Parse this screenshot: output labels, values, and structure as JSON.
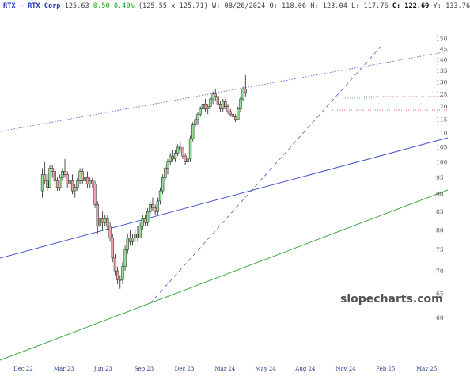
{
  "header": {
    "symbol": "RTX",
    "sep": "-",
    "company": "RTX Corp",
    "last": "125.63",
    "change": "0.50",
    "change_pct": "0.40%",
    "bid_ask": "(125.55 x 125.71)",
    "week_label": "W: 08/26/2024",
    "open": "O: 118.06",
    "high": "H: 123.04",
    "low": "L: 117.76",
    "close": "C: 122.69",
    "y_readout": "Y: 133.76"
  },
  "watermark": "slopecharts.com",
  "colors": {
    "up": "#90e090",
    "down": "#f2a0a8",
    "blue": "#4656cc",
    "green": "#39a539",
    "red": "#d83030"
  },
  "chart_data": {
    "type": "candlestick",
    "y_scale": "log",
    "ylim": [
      56,
      157
    ],
    "y_ticks": [
      60,
      65,
      70,
      75,
      80,
      85,
      90,
      95,
      100,
      105,
      110,
      115,
      120,
      125,
      130,
      135,
      140,
      145,
      150
    ],
    "x_ticks": [
      "Dec 22",
      "Mar 23",
      "Jun 23",
      "Sep 23",
      "Dec 23",
      "Mar 24",
      "May 24",
      "Aug 24",
      "Nov 24",
      "Feb 25",
      "May 25"
    ],
    "weeks": [
      [
        91,
        98,
        89,
        96
      ],
      [
        96,
        100,
        93,
        94
      ],
      [
        94,
        96,
        91,
        92
      ],
      [
        92,
        99,
        92,
        98
      ],
      [
        98,
        99,
        95,
        97
      ],
      [
        97,
        98,
        93,
        94
      ],
      [
        94,
        95,
        91,
        92
      ],
      [
        92,
        96,
        91,
        95
      ],
      [
        95,
        98,
        94,
        97
      ],
      [
        97,
        101,
        95,
        96
      ],
      [
        96,
        97,
        92,
        93
      ],
      [
        93,
        95,
        91,
        94
      ],
      [
        94,
        96,
        90,
        91
      ],
      [
        91,
        93,
        89,
        92
      ],
      [
        92,
        95,
        91,
        94
      ],
      [
        94,
        98,
        93,
        97
      ],
      [
        97,
        98,
        93,
        94
      ],
      [
        94,
        96,
        93,
        95
      ],
      [
        95,
        97,
        92,
        93
      ],
      [
        93,
        95,
        92,
        94
      ],
      [
        94,
        95,
        92,
        93
      ],
      [
        93,
        94,
        86,
        87
      ],
      [
        87,
        88,
        79,
        81
      ],
      [
        81,
        84,
        79,
        83
      ],
      [
        83,
        85,
        80,
        82
      ],
      [
        82,
        84,
        81,
        83
      ],
      [
        83,
        84,
        80,
        81
      ],
      [
        81,
        82,
        77,
        78
      ],
      [
        78,
        79,
        72,
        73
      ],
      [
        73,
        74,
        69,
        70
      ],
      [
        70,
        71,
        67,
        68
      ],
      [
        68,
        69,
        66,
        68
      ],
      [
        68,
        72,
        67,
        71
      ],
      [
        71,
        76,
        70,
        75
      ],
      [
        75,
        79,
        74,
        78
      ],
      [
        78,
        80,
        76,
        77
      ],
      [
        77,
        79,
        76,
        78
      ],
      [
        78,
        80,
        77,
        79
      ],
      [
        79,
        81,
        77,
        78
      ],
      [
        78,
        82,
        78,
        81
      ],
      [
        81,
        84,
        80,
        83
      ],
      [
        83,
        84,
        81,
        82
      ],
      [
        82,
        86,
        81,
        85
      ],
      [
        85,
        88,
        84,
        87
      ],
      [
        87,
        89,
        85,
        86
      ],
      [
        86,
        87,
        84,
        85
      ],
      [
        85,
        89,
        84,
        88
      ],
      [
        88,
        92,
        87,
        91
      ],
      [
        91,
        96,
        90,
        95
      ],
      [
        95,
        99,
        94,
        98
      ],
      [
        98,
        101,
        96,
        100
      ],
      [
        100,
        103,
        99,
        102
      ],
      [
        102,
        104,
        100,
        101
      ],
      [
        101,
        104,
        100,
        103
      ],
      [
        103,
        106,
        102,
        105
      ],
      [
        105,
        107,
        103,
        104
      ],
      [
        104,
        105,
        101,
        102
      ],
      [
        102,
        103,
        99,
        100
      ],
      [
        100,
        102,
        98,
        101
      ],
      [
        101,
        109,
        100,
        108
      ],
      [
        108,
        114,
        107,
        113
      ],
      [
        113,
        116,
        112,
        115
      ],
      [
        115,
        118,
        113,
        117
      ],
      [
        117,
        120,
        116,
        119
      ],
      [
        119,
        122,
        117,
        121
      ],
      [
        121,
        123,
        118,
        119
      ],
      [
        119,
        121,
        117,
        120
      ],
      [
        120,
        124,
        119,
        123
      ],
      [
        123,
        126,
        121,
        125
      ],
      [
        125,
        127,
        122,
        124
      ],
      [
        124,
        125,
        120,
        121
      ],
      [
        121,
        122,
        118,
        119
      ],
      [
        119,
        123,
        118,
        122
      ],
      [
        122,
        123,
        119,
        120
      ],
      [
        120,
        121,
        117,
        118
      ],
      [
        118,
        119,
        116,
        117
      ],
      [
        117,
        118,
        115,
        116
      ],
      [
        116,
        117,
        114,
        115
      ],
      [
        115,
        120,
        115,
        119
      ],
      [
        119,
        124,
        118,
        123
      ],
      [
        123,
        128,
        122,
        127
      ],
      [
        127,
        133,
        124,
        125.63
      ]
    ]
  }
}
